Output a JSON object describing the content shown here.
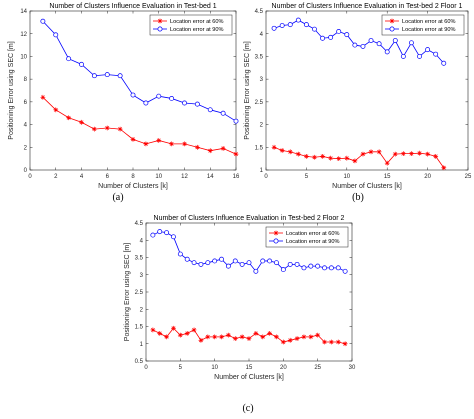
{
  "chart_data": [
    {
      "type": "line",
      "panel_label": "(a)",
      "title": "Number of Clusters Influence Evaluation in Test-bed 1",
      "xlabel": "Number of Clusters  [k]",
      "ylabel": "Positioning Error using SEC [m]",
      "xlim": [
        0,
        16
      ],
      "ylim": [
        0,
        14
      ],
      "xticks": [
        0,
        2,
        4,
        6,
        8,
        10,
        12,
        14,
        16
      ],
      "yticks": [
        0,
        2,
        4,
        6,
        8,
        10,
        12,
        14
      ],
      "grid": false,
      "legend": "top-right",
      "x": [
        1,
        2,
        3,
        4,
        5,
        6,
        7,
        8,
        9,
        10,
        11,
        12,
        13,
        14,
        15,
        16
      ],
      "series": [
        {
          "name": "Location error at 60%",
          "color": "#ff0000",
          "marker": "star",
          "values": [
            6.4,
            5.3,
            4.6,
            4.2,
            3.6,
            3.7,
            3.6,
            2.7,
            2.3,
            2.6,
            2.3,
            2.3,
            2.0,
            1.7,
            1.9,
            1.4
          ]
        },
        {
          "name": "Location error at 90%",
          "color": "#0000ff",
          "marker": "circle",
          "values": [
            13.1,
            11.9,
            9.8,
            9.3,
            8.3,
            8.4,
            8.3,
            6.6,
            5.9,
            6.5,
            6.3,
            5.9,
            5.8,
            5.3,
            5.0,
            4.3
          ]
        }
      ]
    },
    {
      "type": "line",
      "panel_label": "(b)",
      "title": "Number of Clusters Influence Evaluation in Test-bed 2 Floor 1",
      "xlabel": "Number of Clusters  [k]",
      "ylabel": "Positioning Error using SEC [m]",
      "xlim": [
        0,
        25
      ],
      "ylim": [
        1,
        4.5
      ],
      "xticks": [
        0,
        5,
        10,
        15,
        20,
        25
      ],
      "yticks": [
        1,
        1.5,
        2,
        2.5,
        3,
        3.5,
        4,
        4.5
      ],
      "grid": false,
      "legend": "top-right",
      "x": [
        1,
        2,
        3,
        4,
        5,
        6,
        7,
        8,
        9,
        10,
        11,
        12,
        13,
        14,
        15,
        16,
        17,
        18,
        19,
        20,
        21,
        22
      ],
      "series": [
        {
          "name": "Location error at 60%",
          "color": "#ff0000",
          "marker": "star",
          "values": [
            1.5,
            1.43,
            1.4,
            1.35,
            1.3,
            1.28,
            1.3,
            1.26,
            1.25,
            1.26,
            1.2,
            1.35,
            1.4,
            1.4,
            1.15,
            1.35,
            1.36,
            1.36,
            1.37,
            1.35,
            1.3,
            1.05
          ]
        },
        {
          "name": "Location error at 90%",
          "color": "#0000ff",
          "marker": "circle",
          "values": [
            4.12,
            4.18,
            4.2,
            4.3,
            4.2,
            4.1,
            3.9,
            3.92,
            4.05,
            3.98,
            3.75,
            3.72,
            3.85,
            3.78,
            3.6,
            3.85,
            3.5,
            3.8,
            3.5,
            3.65,
            3.55,
            3.35
          ]
        }
      ]
    },
    {
      "type": "line",
      "panel_label": "(c)",
      "title": "Number of Clusters Influence Evaluation in Test-bed 2 Floor 2",
      "xlabel": "Number of Clusters  [k]",
      "ylabel": "Positioning Error using SEC [m]",
      "xlim": [
        0,
        30
      ],
      "ylim": [
        0.5,
        4.5
      ],
      "xticks": [
        0,
        5,
        10,
        15,
        20,
        25,
        30
      ],
      "yticks": [
        0.5,
        1,
        1.5,
        2,
        2.5,
        3,
        3.5,
        4,
        4.5
      ],
      "grid": false,
      "legend": "top-right",
      "x": [
        1,
        2,
        3,
        4,
        5,
        6,
        7,
        8,
        9,
        10,
        11,
        12,
        13,
        14,
        15,
        16,
        17,
        18,
        19,
        20,
        21,
        22,
        23,
        24,
        25,
        26,
        27,
        28,
        29
      ],
      "series": [
        {
          "name": "Location error at 60%",
          "color": "#ff0000",
          "marker": "star",
          "values": [
            1.4,
            1.3,
            1.2,
            1.45,
            1.25,
            1.3,
            1.4,
            1.1,
            1.2,
            1.2,
            1.2,
            1.25,
            1.15,
            1.2,
            1.15,
            1.3,
            1.2,
            1.3,
            1.2,
            1.05,
            1.1,
            1.15,
            1.2,
            1.2,
            1.25,
            1.05,
            1.05,
            1.05,
            1.0
          ]
        },
        {
          "name": "Location error at 90%",
          "color": "#0000ff",
          "marker": "circle",
          "values": [
            4.15,
            4.25,
            4.22,
            4.1,
            3.6,
            3.45,
            3.35,
            3.3,
            3.35,
            3.4,
            3.45,
            3.25,
            3.4,
            3.3,
            3.35,
            3.1,
            3.4,
            3.4,
            3.35,
            3.15,
            3.3,
            3.3,
            3.2,
            3.25,
            3.25,
            3.2,
            3.2,
            3.2,
            3.1
          ]
        }
      ]
    }
  ]
}
